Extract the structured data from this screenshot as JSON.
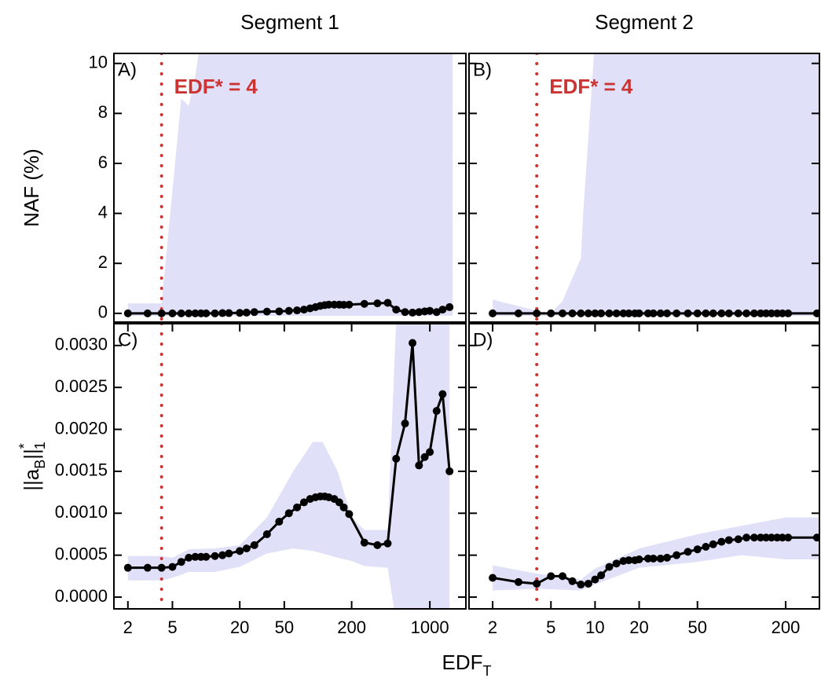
{
  "shared": {
    "xlabel": "EDF",
    "xlabel_sub": "T"
  },
  "chart_data": [
    {
      "type": "line",
      "title": "Segment 1",
      "panel_label": "A)",
      "annotation": "EDF* = 4",
      "vline": 4,
      "vline_color": "#cc3333",
      "ylabel": "NAF (%)",
      "xscale": "log",
      "xlim": [
        1.5,
        2100
      ],
      "ylim": [
        -0.35,
        10.4
      ],
      "yticks": [
        0,
        2,
        4,
        6,
        8,
        10
      ],
      "x": [
        2,
        3,
        4,
        5,
        6,
        7,
        8,
        9,
        10,
        12,
        14,
        16,
        20,
        23,
        27,
        35,
        45,
        55,
        65,
        75,
        85,
        95,
        105,
        115,
        125,
        140,
        155,
        170,
        190,
        260,
        340,
        420,
        500,
        600,
        700,
        800,
        900,
        1000,
        1150,
        1300,
        1500
      ],
      "series": [
        {
          "color": "#000000",
          "values": [
            0,
            0,
            0,
            0,
            0,
            0,
            0,
            0,
            0,
            0,
            0.01,
            0.01,
            0.02,
            0.03,
            0.05,
            0.07,
            0.08,
            0.1,
            0.12,
            0.15,
            0.2,
            0.25,
            0.3,
            0.33,
            0.35,
            0.35,
            0.35,
            0.34,
            0.35,
            0.38,
            0.4,
            0.42,
            0.15,
            0.05,
            0.03,
            0.05,
            0.08,
            0.1,
            0.05,
            0.15,
            0.25
          ]
        }
      ],
      "band": {
        "color": "#e0e0f8",
        "x": [
          2,
          4,
          6,
          7,
          8,
          9,
          1600
        ],
        "upper": [
          0.4,
          0.4,
          8.6,
          8.3,
          9.5,
          11,
          11
        ],
        "lower": [
          -0.1,
          -0.1,
          -0.1,
          -0.1,
          -0.1,
          -0.1,
          -0.1
        ]
      }
    },
    {
      "type": "line",
      "title": "Segment 2",
      "panel_label": "B)",
      "annotation": "EDF* = 4",
      "vline": 4,
      "vline_color": "#cc3333",
      "xscale": "log",
      "xlim": [
        1.38,
        340
      ],
      "ylim": [
        -0.35,
        10.4
      ],
      "share_y": 0,
      "x": [
        2,
        3,
        4,
        5,
        6,
        7,
        8,
        9,
        10,
        11,
        12.5,
        14,
        15.6,
        17,
        18.7,
        20,
        23,
        25,
        28,
        31,
        36,
        43,
        50,
        57,
        64,
        73,
        82,
        95,
        108,
        122,
        135,
        147,
        160,
        175,
        190,
        208,
        327
      ],
      "series": [
        {
          "color": "#000000",
          "values": [
            0,
            0,
            0,
            0,
            0,
            0,
            0,
            0,
            0,
            0,
            0,
            0,
            0,
            0,
            0,
            0,
            0,
            0,
            0,
            0,
            0,
            0,
            0,
            0,
            0,
            0,
            0,
            0,
            0,
            0,
            0,
            0,
            0,
            0,
            0,
            0,
            0
          ]
        }
      ],
      "band": {
        "color": "#e0e0f8",
        "x": [
          2,
          4,
          5,
          6,
          8,
          8.3,
          10,
          340
        ],
        "upper": [
          0.55,
          0.1,
          0,
          0.5,
          2.2,
          4,
          11,
          11
        ],
        "lower": [
          -0.1,
          -0.1,
          -0.1,
          -0.1,
          -0.1,
          -0.1,
          -0.1,
          -0.1
        ]
      }
    },
    {
      "type": "line",
      "panel_label": "C)",
      "vline": 4,
      "vline_color": "#cc3333",
      "ylabel": [
        "||a",
        "B",
        "||",
        "*",
        "1"
      ],
      "xscale": "log",
      "xlim": [
        1.5,
        2100
      ],
      "ylim": [
        -0.00014,
        0.00326
      ],
      "xticks": [
        2,
        5,
        20,
        50,
        200,
        1000
      ],
      "yticks": [
        {
          "value": 0,
          "label": "0.0000"
        },
        0.0005,
        {
          "value": 0.001,
          "label": "0.0010"
        },
        0.0015,
        {
          "value": 0.002,
          "label": "0.0020"
        },
        0.0025,
        {
          "value": 0.003,
          "label": "0.0030"
        }
      ],
      "x": [
        2,
        3,
        4,
        5,
        6,
        7,
        8,
        9,
        10,
        12,
        14,
        16,
        20,
        23,
        27,
        35,
        45,
        55,
        65,
        75,
        85,
        95,
        105,
        115,
        125,
        140,
        155,
        170,
        190,
        260,
        340,
        420,
        500,
        600,
        700,
        800,
        900,
        1000,
        1150,
        1300,
        1500
      ],
      "series": [
        {
          "color": "#000000",
          "values": [
            0.00035,
            0.00035,
            0.00035,
            0.00036,
            0.00042,
            0.00047,
            0.00048,
            0.00048,
            0.00048,
            0.00049,
            0.0005,
            0.00052,
            0.00055,
            0.00058,
            0.00062,
            0.00075,
            0.0009,
            0.001,
            0.00107,
            0.00113,
            0.00117,
            0.00119,
            0.0012,
            0.0012,
            0.00119,
            0.00117,
            0.00113,
            0.00107,
            0.00099,
            0.00065,
            0.00062,
            0.00064,
            0.00165,
            0.00207,
            0.00303,
            0.00157,
            0.00167,
            0.00173,
            0.00222,
            0.00242,
            0.0015
          ]
        }
      ],
      "band": {
        "color": "#e0e0f8",
        "x": [
          2,
          4,
          5,
          7,
          12,
          20,
          35,
          60,
          90,
          110,
          150,
          200,
          260,
          420,
          500,
          1500
        ],
        "upper": [
          0.00049,
          0.00049,
          0.00047,
          0.00057,
          0.00058,
          0.00062,
          0.00095,
          0.0015,
          0.00185,
          0.00185,
          0.0015,
          0.00095,
          0.0008,
          0.0008,
          0.0033,
          0.0033
        ],
        "lower": [
          0.0002,
          0.0002,
          0.00023,
          0.0003,
          0.0003,
          0.00036,
          0.00052,
          0.00058,
          0.00055,
          0.00052,
          0.00047,
          0.00043,
          0.00037,
          0.00035,
          -0.0003,
          -0.0003
        ]
      }
    },
    {
      "type": "line",
      "panel_label": "D)",
      "vline": 4,
      "vline_color": "#cc3333",
      "xscale": "log",
      "xlim": [
        1.38,
        340
      ],
      "ylim": [
        -0.00014,
        0.00326
      ],
      "share_y": 2,
      "xticks": [
        2,
        5,
        10,
        20,
        50,
        200
      ],
      "x": [
        2,
        3,
        4,
        5,
        6,
        7,
        8,
        9,
        10,
        11,
        12.5,
        14,
        15.6,
        17,
        18.7,
        20,
        23,
        25,
        28,
        31,
        36,
        43,
        50,
        57,
        64,
        73,
        82,
        95,
        108,
        122,
        135,
        147,
        160,
        175,
        190,
        208,
        327
      ],
      "series": [
        {
          "color": "#000000",
          "values": [
            0.00023,
            0.00018,
            0.00016,
            0.00025,
            0.00025,
            0.00019,
            0.00015,
            0.00016,
            0.00021,
            0.00026,
            0.00036,
            0.0004,
            0.00043,
            0.00044,
            0.00044,
            0.00045,
            0.00046,
            0.00046,
            0.00046,
            0.00047,
            0.0005,
            0.00054,
            0.00057,
            0.0006,
            0.00063,
            0.00066,
            0.00068,
            0.00069,
            0.00071,
            0.00071,
            0.00071,
            0.00071,
            0.00071,
            0.00071,
            0.00071,
            0.00071,
            0.00071
          ]
        }
      ],
      "band": {
        "color": "#e0e0f8",
        "x": [
          2,
          4,
          8,
          10,
          20,
          50,
          100,
          200,
          340
        ],
        "upper": [
          0.00038,
          0.00028,
          0.00021,
          0.00034,
          0.00058,
          0.00075,
          0.00085,
          0.00095,
          0.00095
        ],
        "lower": [
          8e-05,
          0.0001,
          8e-05,
          0.00015,
          0.00035,
          0.00042,
          0.0005,
          0.00045,
          0.00045
        ]
      }
    }
  ]
}
